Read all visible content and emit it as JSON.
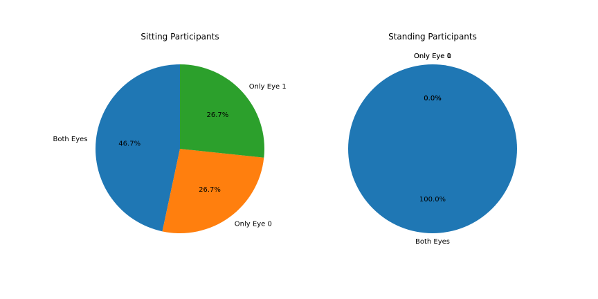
{
  "chart_data": [
    {
      "type": "pie",
      "title": "Sitting Participants",
      "start_angle_deg": 90,
      "direction": "counterclockwise",
      "slices": [
        {
          "label": "Both Eyes",
          "value": 46.7,
          "pct_label": "46.7%",
          "color": "#1f77b4"
        },
        {
          "label": "Only Eye 0",
          "value": 26.7,
          "pct_label": "26.7%",
          "color": "#ff7f0e"
        },
        {
          "label": "Only Eye 1",
          "value": 26.7,
          "pct_label": "26.7%",
          "color": "#2ca02c"
        }
      ]
    },
    {
      "type": "pie",
      "title": "Standing Participants",
      "start_angle_deg": 90,
      "direction": "counterclockwise",
      "slices": [
        {
          "label": "Both Eyes",
          "value": 100.0,
          "pct_label": "100.0%",
          "color": "#1f77b4"
        },
        {
          "label": "Only Eye 0",
          "value": 0.0,
          "pct_label": "0.0%",
          "color": "#ff7f0e"
        },
        {
          "label": "Only Eye 1",
          "value": 0.0,
          "pct_label": "0.0%",
          "color": "#2ca02c"
        }
      ]
    }
  ]
}
